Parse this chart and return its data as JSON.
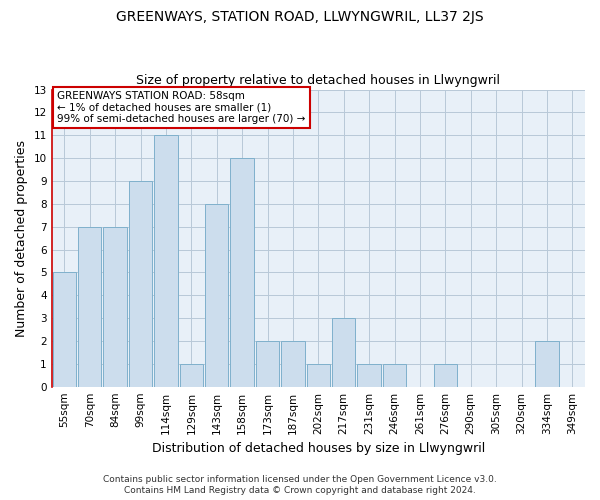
{
  "title": "GREENWAYS, STATION ROAD, LLWYNGWRIL, LL37 2JS",
  "subtitle": "Size of property relative to detached houses in Llwyngwril",
  "xlabel": "Distribution of detached houses by size in Llwyngwril",
  "ylabel": "Number of detached properties",
  "categories": [
    "55sqm",
    "70sqm",
    "84sqm",
    "99sqm",
    "114sqm",
    "129sqm",
    "143sqm",
    "158sqm",
    "173sqm",
    "187sqm",
    "202sqm",
    "217sqm",
    "231sqm",
    "246sqm",
    "261sqm",
    "276sqm",
    "290sqm",
    "305sqm",
    "320sqm",
    "334sqm",
    "349sqm"
  ],
  "values": [
    5,
    7,
    7,
    9,
    11,
    1,
    8,
    10,
    2,
    2,
    1,
    3,
    1,
    1,
    0,
    1,
    0,
    0,
    0,
    2,
    0
  ],
  "bar_color": "#ccdded",
  "bar_edge_color": "#7fb0cc",
  "ylim": [
    0,
    13
  ],
  "yticks": [
    0,
    1,
    2,
    3,
    4,
    5,
    6,
    7,
    8,
    9,
    10,
    11,
    12,
    13
  ],
  "annotation_box_text": [
    "GREENWAYS STATION ROAD: 58sqm",
    "← 1% of detached houses are smaller (1)",
    "99% of semi-detached houses are larger (70) →"
  ],
  "annotation_box_color": "#ffffff",
  "annotation_box_edge_color": "#cc0000",
  "left_spine_color": "#cc0000",
  "footer_lines": [
    "Contains HM Land Registry data © Crown copyright and database right 2024.",
    "Contains public sector information licensed under the Open Government Licence v3.0."
  ],
  "plot_bg_color": "#e8f0f8",
  "fig_bg_color": "#ffffff",
  "grid_color": "#b8c8d8",
  "title_fontsize": 10,
  "subtitle_fontsize": 9,
  "axis_label_fontsize": 9,
  "tick_fontsize": 7.5,
  "annotation_fontsize": 7.5,
  "footer_fontsize": 6.5
}
